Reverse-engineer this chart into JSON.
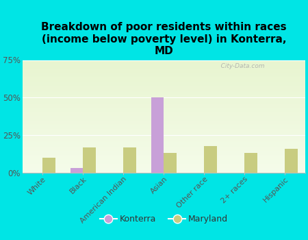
{
  "title": "Breakdown of poor residents within races\n(income below poverty level) in Konterra,\nMD",
  "categories": [
    "White",
    "Black",
    "American Indian",
    "Asian",
    "Other race",
    "2+ races",
    "Hispanic"
  ],
  "konterra_values": [
    0,
    3,
    0,
    50,
    0,
    0,
    0
  ],
  "maryland_values": [
    10,
    17,
    17,
    13,
    18,
    13,
    16
  ],
  "konterra_color": "#c8a0d8",
  "maryland_color": "#c8cc80",
  "bg_outer": "#00e5e5",
  "bg_plot_top": "#e8f5d0",
  "bg_plot_bottom": "#f5fcea",
  "ylim": [
    0,
    75
  ],
  "yticks": [
    0,
    25,
    50,
    75
  ],
  "ylabel_format": "{}%",
  "watermark": "   City-Data.com",
  "legend_konterra": "Konterra",
  "legend_maryland": "Maryland",
  "title_fontsize": 11,
  "tick_fontsize": 8.5
}
